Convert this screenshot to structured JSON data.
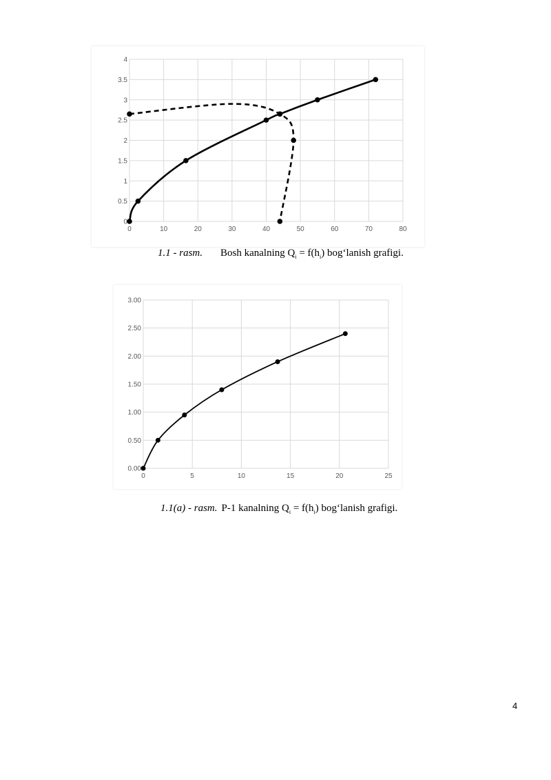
{
  "captions": {
    "fig1": {
      "number": "1.1 - rasm.",
      "text_before": "Bosh kanalning Q",
      "sub1": "i",
      "text_mid": " = f(h",
      "sub2": "i",
      "text_after": ") bog‘lanish grafigi."
    },
    "fig2": {
      "number": "1.1(a) - rasm.",
      "text_before": "P-1 kanalning Q",
      "sub1": "i",
      "text_mid": " = f(h",
      "sub2": "i",
      "text_after": ") bog‘lanish grafigi."
    }
  },
  "page_number": "4",
  "chart_data": [
    {
      "type": "scatter",
      "grid": true,
      "legend": "none",
      "xlim": [
        0,
        80
      ],
      "ylim": [
        0,
        4
      ],
      "x_ticks": [
        "0",
        "10",
        "20",
        "30",
        "40",
        "50",
        "60",
        "70",
        "80"
      ],
      "y_ticks": [
        "0",
        "0.5",
        "1",
        "1.5",
        "2",
        "2.5",
        "3",
        "3.5",
        "4"
      ],
      "series": [
        {
          "style": "solid",
          "color": "#000000",
          "smooth": true,
          "x": [
            0,
            2.5,
            16.5,
            40,
            44,
            55,
            72
          ],
          "y": [
            0,
            0.5,
            1.5,
            2.5,
            2.65,
            3.0,
            3.5
          ]
        },
        {
          "style": "dashed",
          "color": "#000000",
          "smooth": true,
          "markers_at": [
            0,
            1,
            4
          ],
          "x": [
            0,
            44,
            48,
            44
          ],
          "y": [
            2.65,
            2.65,
            2.0,
            0
          ],
          "curve_through": [
            [
              0,
              2.65
            ],
            [
              30,
              2.9
            ],
            [
              44,
              2.65
            ],
            [
              48,
              2.0
            ],
            [
              44,
              0
            ]
          ]
        }
      ]
    },
    {
      "type": "scatter",
      "grid": true,
      "legend": "none",
      "xlim": [
        0,
        25
      ],
      "ylim": [
        0,
        3
      ],
      "x_ticks": [
        "0",
        "5",
        "10",
        "15",
        "20",
        "25"
      ],
      "y_ticks": [
        "0.00",
        "0.50",
        "1.00",
        "1.50",
        "2.00",
        "2.50",
        "3.00"
      ],
      "series": [
        {
          "style": "solid",
          "color": "#000000",
          "smooth": true,
          "x": [
            0,
            1.5,
            4.2,
            8,
            13.7,
            20.6
          ],
          "y": [
            0,
            0.5,
            0.95,
            1.4,
            1.9,
            2.4
          ]
        }
      ]
    }
  ]
}
